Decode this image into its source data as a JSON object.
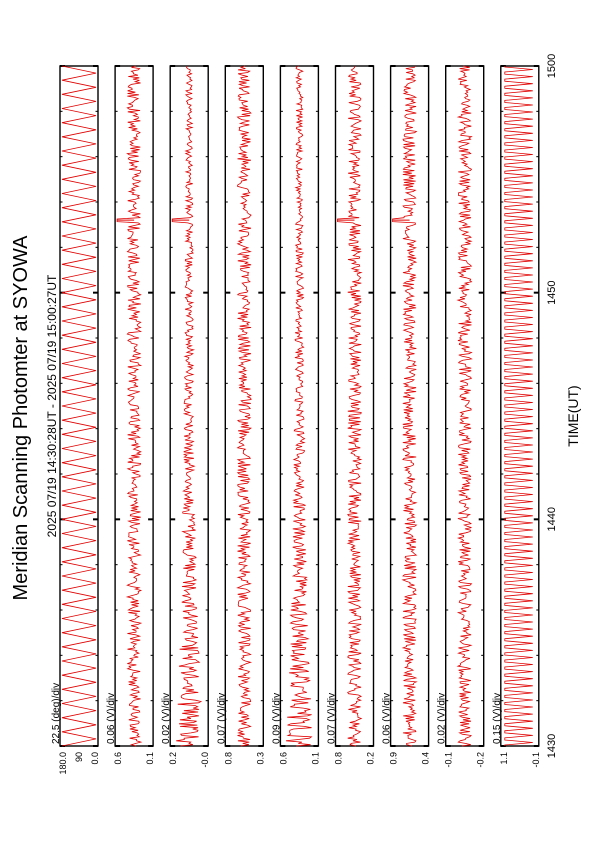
{
  "page": {
    "title": "Meridian Scanning Photomter at SYOWA",
    "time_range": "2025 07/19 14:30:28UT - 2025 07/19 15:00:27UT",
    "xlabel": "TIME(UT)"
  },
  "colors": {
    "trace": "#e00000",
    "axes": "#000000",
    "background": "#ffffff"
  },
  "chart_data": {
    "type": "line",
    "orientation": "rotated-90",
    "x_axis": {
      "ticks": [
        "1430",
        "1440",
        "1450",
        "1500"
      ],
      "range_minutes": [
        0,
        30
      ],
      "minor_tick_minutes": 2,
      "major_tick_minutes": 10
    },
    "event_marker_minute": 23.2,
    "panels": [
      {
        "scale": "22.5 (deg)/div",
        "yticks": [
          "180.0",
          "90",
          "0.0"
        ],
        "ylabel": "",
        "kind": "scan"
      },
      {
        "scale": "0.06 (V)/div",
        "yticks": [
          "0.6",
          "0.1"
        ],
        "ylabel": "",
        "kind": "noise",
        "spike": true
      },
      {
        "scale": "0.02 (V)/div",
        "yticks": [
          "0.2",
          "-0.0"
        ],
        "ylabel": "",
        "kind": "noise-decay",
        "spike": true
      },
      {
        "scale": "0.07 (V)/div",
        "yticks": [
          "0.8",
          "0.3"
        ],
        "ylabel": "",
        "kind": "noise",
        "spike": false
      },
      {
        "scale": "0.09 (V)/div",
        "yticks": [
          "0.6",
          "0.1"
        ],
        "ylabel": "",
        "kind": "noise-decay",
        "spike": false
      },
      {
        "scale": "0.07 (V)/div",
        "yticks": [
          "0.8",
          "0.2"
        ],
        "ylabel": "",
        "kind": "noise",
        "spike": true
      },
      {
        "scale": "0.06 (V)/div",
        "yticks": [
          "0.9",
          "0.4"
        ],
        "ylabel": "",
        "kind": "noise",
        "spike": true
      },
      {
        "scale": "0.02 (V)/div",
        "yticks": [
          "-0.1",
          "-0.2"
        ],
        "ylabel": "",
        "kind": "noise",
        "spike": false
      },
      {
        "scale": "0.15 (V)/div",
        "yticks": [
          "1.1",
          "-0.1"
        ],
        "ylabel": "",
        "kind": "pulses",
        "spike": false
      }
    ]
  }
}
